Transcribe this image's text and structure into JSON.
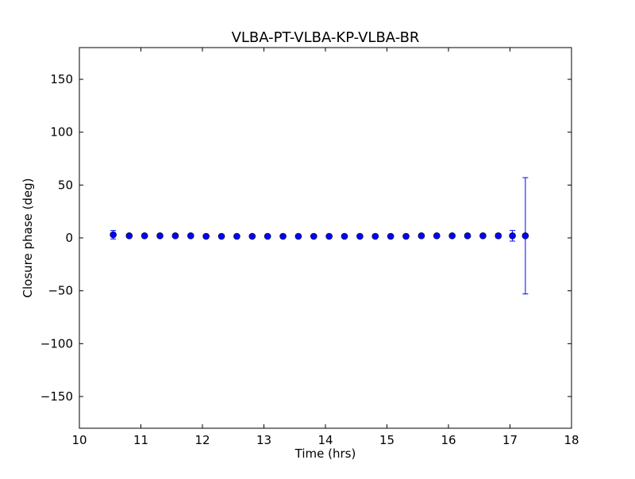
{
  "chart_data": {
    "type": "scatter",
    "title": "VLBA-PT-VLBA-KP-VLBA-BR",
    "xlabel": "Time (hrs)",
    "ylabel": "Closure phase (deg)",
    "xlim": [
      10,
      18
    ],
    "ylim": [
      -180,
      180
    ],
    "xticks": [
      10,
      11,
      12,
      13,
      14,
      15,
      16,
      17,
      18
    ],
    "yticks": [
      -150,
      -100,
      -50,
      0,
      50,
      100,
      150
    ],
    "xtick_labels": [
      "10",
      "11",
      "12",
      "13",
      "14",
      "15",
      "16",
      "17",
      "18"
    ],
    "ytick_labels": [
      "−150",
      "−100",
      "−50",
      "0",
      "50",
      "100",
      "150"
    ],
    "grid": false,
    "error_bars": true,
    "marker_color": "#0000ff",
    "errorbar_color": "#0000ff",
    "points": [
      {
        "x": 10.55,
        "y": 3.0,
        "err": 4.0
      },
      {
        "x": 10.81,
        "y": 2.0,
        "err": 1.5
      },
      {
        "x": 11.06,
        "y": 2.0,
        "err": 1.5
      },
      {
        "x": 11.31,
        "y": 2.0,
        "err": 1.5
      },
      {
        "x": 11.56,
        "y": 2.0,
        "err": 1.5
      },
      {
        "x": 11.81,
        "y": 2.0,
        "err": 1.5
      },
      {
        "x": 12.06,
        "y": 1.5,
        "err": 1.5
      },
      {
        "x": 12.31,
        "y": 1.5,
        "err": 1.5
      },
      {
        "x": 12.56,
        "y": 1.5,
        "err": 1.5
      },
      {
        "x": 12.81,
        "y": 1.5,
        "err": 1.5
      },
      {
        "x": 13.06,
        "y": 1.5,
        "err": 1.5
      },
      {
        "x": 13.31,
        "y": 1.5,
        "err": 1.5
      },
      {
        "x": 13.56,
        "y": 1.5,
        "err": 1.5
      },
      {
        "x": 13.81,
        "y": 1.5,
        "err": 1.5
      },
      {
        "x": 14.06,
        "y": 1.5,
        "err": 1.5
      },
      {
        "x": 14.31,
        "y": 1.5,
        "err": 1.5
      },
      {
        "x": 14.56,
        "y": 1.5,
        "err": 1.5
      },
      {
        "x": 14.81,
        "y": 1.5,
        "err": 1.5
      },
      {
        "x": 15.06,
        "y": 1.5,
        "err": 1.5
      },
      {
        "x": 15.31,
        "y": 1.5,
        "err": 1.5
      },
      {
        "x": 15.56,
        "y": 2.0,
        "err": 1.5
      },
      {
        "x": 15.81,
        "y": 2.0,
        "err": 1.5
      },
      {
        "x": 16.06,
        "y": 2.0,
        "err": 1.5
      },
      {
        "x": 16.31,
        "y": 2.0,
        "err": 1.5
      },
      {
        "x": 16.56,
        "y": 2.0,
        "err": 1.5
      },
      {
        "x": 16.81,
        "y": 2.0,
        "err": 2.0
      },
      {
        "x": 17.04,
        "y": 2.0,
        "err": 5.0
      },
      {
        "x": 17.25,
        "y": 2.0,
        "err": 55.0
      }
    ]
  }
}
